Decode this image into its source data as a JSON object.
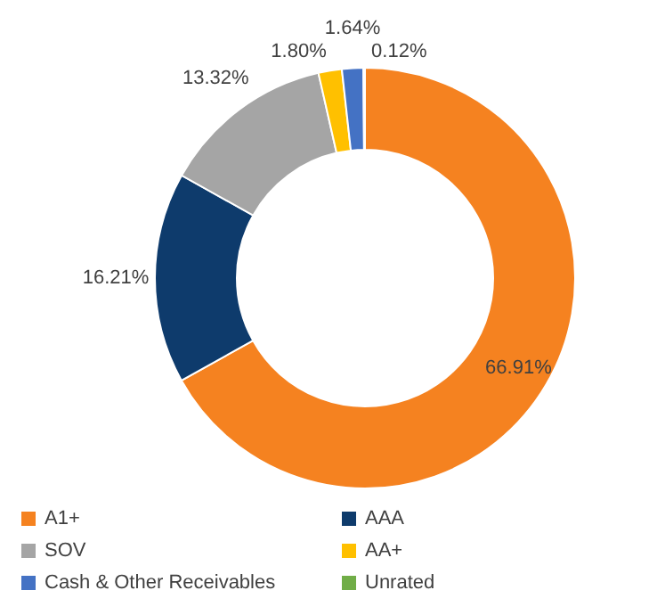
{
  "chart_data": {
    "type": "donut",
    "categories": [
      "A1+",
      "AAA",
      "SOV",
      "AA+",
      "Cash & Other Receivables",
      "Unrated"
    ],
    "values": [
      66.91,
      16.21,
      13.32,
      1.8,
      1.64,
      0.12
    ],
    "value_labels": [
      "66.91%",
      "16.21%",
      "13.32%",
      "1.80%",
      "1.64%",
      "0.12%"
    ],
    "colors": [
      "#f58220",
      "#0e3b6c",
      "#a5a5a5",
      "#ffc000",
      "#4472c4",
      "#70ad47"
    ],
    "legend": "bottom"
  }
}
